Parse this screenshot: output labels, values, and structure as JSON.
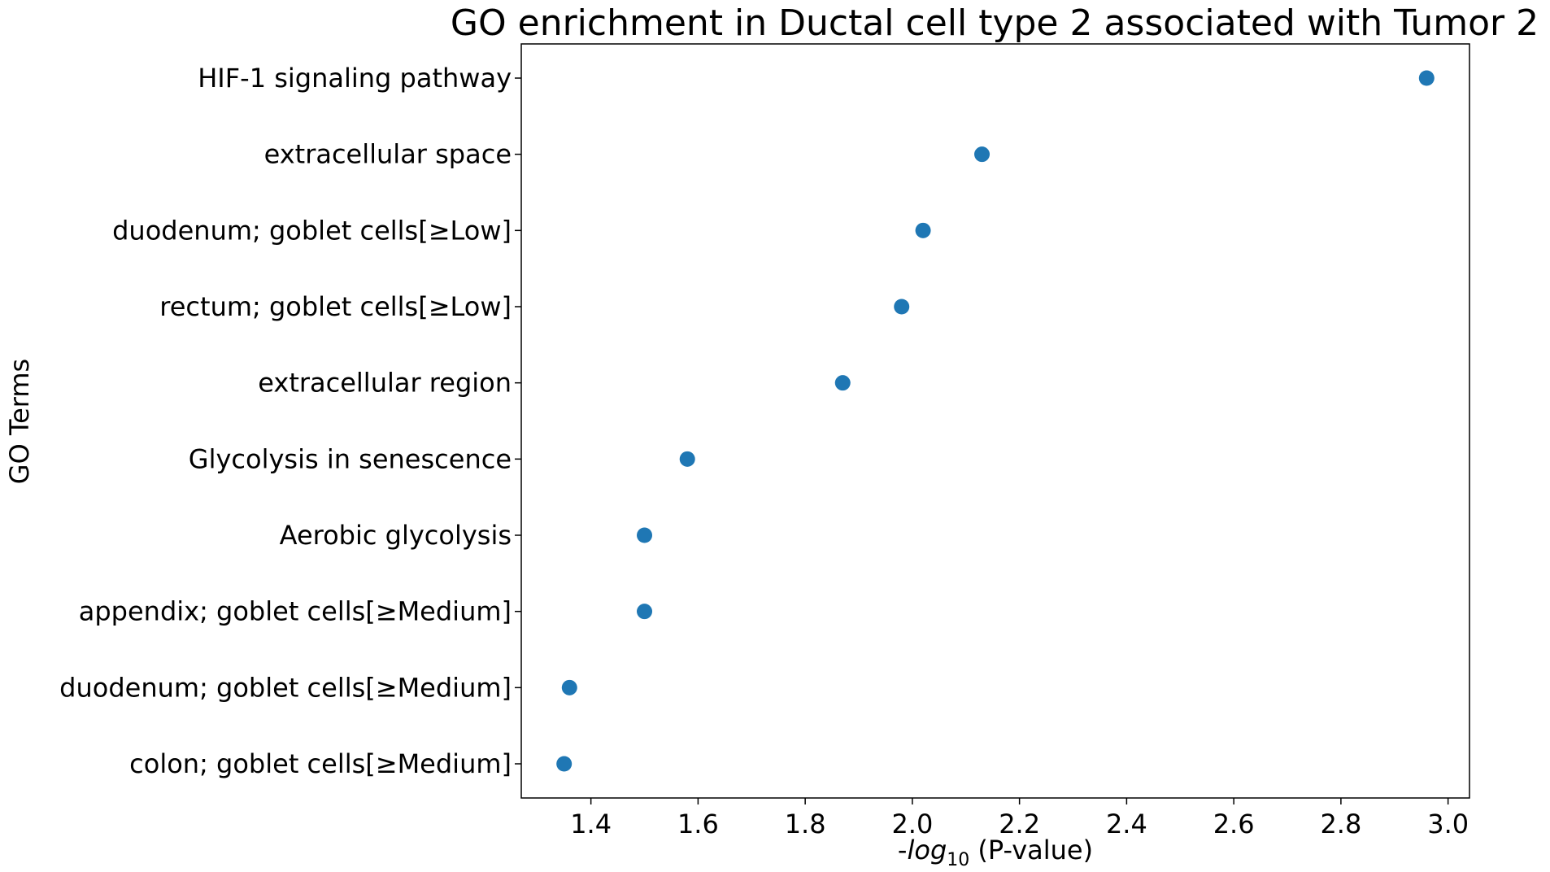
{
  "chart_data": {
    "type": "scatter",
    "title": "GO enrichment in Ductal cell type 2 associated with Tumor 2",
    "xlabel_prefix": "-",
    "xlabel_log": "log",
    "xlabel_base": "10",
    "xlabel_suffix": " (P-value)",
    "ylabel": "GO Terms",
    "xlim": [
      1.27,
      3.04
    ],
    "xticks": [
      1.4,
      1.6,
      1.8,
      2.0,
      2.2,
      2.4,
      2.6,
      2.8,
      3.0
    ],
    "xtick_labels": [
      "1.4",
      "1.6",
      "1.8",
      "2.0",
      "2.2",
      "2.4",
      "2.6",
      "2.8",
      "3.0"
    ],
    "categories": [
      "HIF-1 signaling pathway",
      "extracellular space",
      "duodenum; goblet cells[≥Low]",
      "rectum; goblet cells[≥Low]",
      "extracellular region",
      "Glycolysis in senescence",
      "Aerobic glycolysis",
      "appendix; goblet cells[≥Medium]",
      "duodenum; goblet cells[≥Medium]",
      "colon; goblet cells[≥Medium]"
    ],
    "values": [
      2.96,
      2.13,
      2.02,
      1.98,
      1.87,
      1.58,
      1.5,
      1.5,
      1.36,
      1.35
    ],
    "point_color": "#1f77b4",
    "grid": false
  }
}
